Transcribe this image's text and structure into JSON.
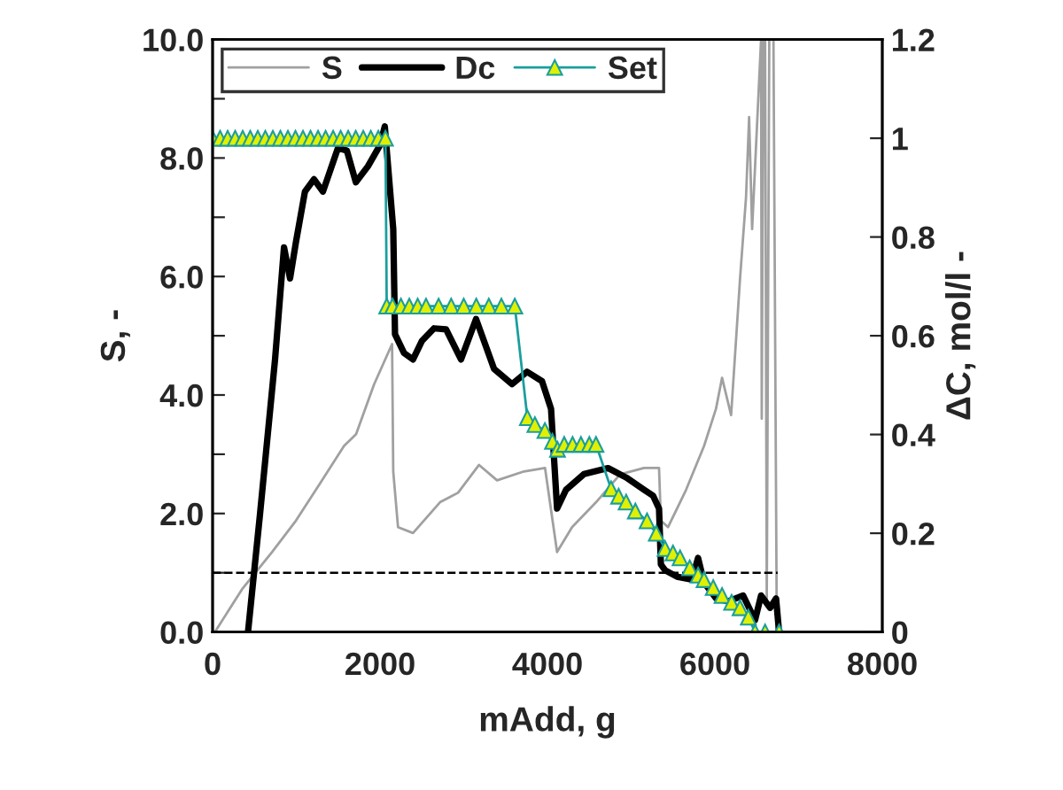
{
  "chart_data": {
    "type": "line",
    "xlabel": "mAdd, g",
    "ylabel": "S, -",
    "y2label": "ΔC, mol/l -",
    "xlim": [
      0,
      8000
    ],
    "xticks": [
      0,
      2000,
      4000,
      6000,
      8000
    ],
    "ylim": [
      0,
      10
    ],
    "yticks": [
      {
        "value": 0,
        "label": "0.0"
      },
      {
        "value": 1,
        "label": null
      },
      {
        "value": 2,
        "label": "2.0"
      },
      {
        "value": 3,
        "label": null
      },
      {
        "value": 4,
        "label": "4.0"
      },
      {
        "value": 5,
        "label": null
      },
      {
        "value": 6,
        "label": "6.0"
      },
      {
        "value": 7,
        "label": null
      },
      {
        "value": 8,
        "label": "8.0"
      },
      {
        "value": 9,
        "label": null
      },
      {
        "value": 10,
        "label": "10.0"
      }
    ],
    "y2lim": [
      0,
      1.2
    ],
    "y2ticks": [
      0,
      0.2,
      0.4,
      0.6,
      0.8,
      1,
      1.2
    ],
    "legend": "top left",
    "grid": false,
    "series": [
      {
        "name": "S",
        "color": "#a0a0a0",
        "marker": "none",
        "line_style": "solid",
        "x": [
          28,
          351,
          710,
          996,
          1284,
          1570,
          1714,
          1929,
          2144,
          2158,
          2215,
          2394,
          2717,
          2932,
          3183,
          3398,
          3720,
          3971,
          4115,
          4294,
          4581,
          4867,
          5154,
          5333,
          5355,
          5441,
          5656,
          5871,
          6014,
          6086,
          6194,
          6301,
          6372,
          6409,
          6445,
          6552,
          6560,
          6580,
          6600,
          6620,
          6650,
          6700,
          6740
        ],
        "values": [
          0,
          0.72,
          1.35,
          1.88,
          2.51,
          3.14,
          3.34,
          4.18,
          4.86,
          2.71,
          1.77,
          1.67,
          2.19,
          2.35,
          2.82,
          2.56,
          2.71,
          2.77,
          1.35,
          1.77,
          2.19,
          2.66,
          2.77,
          2.77,
          1.88,
          1.77,
          2.4,
          3.14,
          3.77,
          4.29,
          3.66,
          5.97,
          7.33,
          8.69,
          6.8,
          10,
          3.6,
          10,
          10,
          0.5,
          10,
          10,
          0
        ]
      },
      {
        "name": "Dc",
        "color": "#000000",
        "axis": "y2",
        "marker": "none",
        "line_style": "solid",
        "x": [
          423,
          566,
          746,
          853,
          925,
          996,
          1103,
          1211,
          1318,
          1497,
          1604,
          1711,
          1855,
          2000,
          2057,
          2158,
          2179,
          2287,
          2394,
          2502,
          2645,
          2789,
          2968,
          3147,
          3362,
          3577,
          3756,
          3935,
          4043,
          4115,
          4222,
          4437,
          4724,
          4939,
          5154,
          5262,
          5333,
          5355,
          5405,
          5548,
          5727,
          5799,
          5871,
          6014,
          6158,
          6337,
          6480,
          6552,
          6660,
          6731,
          6767
        ],
        "values": [
          0,
          0.238,
          0.552,
          0.779,
          0.716,
          0.79,
          0.892,
          0.917,
          0.892,
          0.98,
          0.975,
          0.911,
          0.943,
          0.986,
          1.024,
          0.816,
          0.603,
          0.565,
          0.552,
          0.59,
          0.615,
          0.613,
          0.552,
          0.634,
          0.533,
          0.502,
          0.527,
          0.508,
          0.452,
          0.25,
          0.288,
          0.32,
          0.332,
          0.313,
          0.288,
          0.276,
          0.25,
          0.137,
          0.125,
          0.112,
          0.106,
          0.15,
          0.1,
          0.068,
          0.062,
          0.074,
          0.024,
          0.074,
          0.049,
          0.068,
          0
        ]
      },
      {
        "name": "Set",
        "color": "#1a9e9e",
        "axis": "y2",
        "marker": "triangle",
        "line_style": "solid",
        "x": [
          0,
          90,
          180,
          270,
          360,
          450,
          540,
          630,
          720,
          810,
          900,
          990,
          1080,
          1170,
          1260,
          1350,
          1440,
          1530,
          1620,
          1710,
          1800,
          1890,
          1980,
          2065,
          2080,
          2150,
          2250,
          2350,
          2450,
          2550,
          2700,
          2850,
          3000,
          3150,
          3300,
          3450,
          3610,
          3760,
          3850,
          3970,
          4060,
          4120,
          4200,
          4300,
          4400,
          4500,
          4580,
          4760,
          4850,
          4940,
          5050,
          5190,
          5300,
          5405,
          5500,
          5584,
          5700,
          5800,
          5871,
          5980,
          6086,
          6200,
          6301,
          6400,
          6480,
          6600,
          6767
        ],
        "values": [
          1,
          1,
          1,
          1,
          1,
          1,
          1,
          1,
          1,
          1,
          1,
          1,
          1,
          1,
          1,
          1,
          1,
          1,
          1,
          1,
          1,
          1,
          1,
          1,
          0.66,
          0.66,
          0.66,
          0.66,
          0.66,
          0.66,
          0.66,
          0.66,
          0.66,
          0.66,
          0.66,
          0.66,
          0.66,
          0.434,
          0.42,
          0.408,
          0.386,
          0.37,
          0.38,
          0.38,
          0.38,
          0.38,
          0.38,
          0.29,
          0.275,
          0.263,
          0.245,
          0.225,
          0.2,
          0.169,
          0.16,
          0.15,
          0.13,
          0.115,
          0.106,
          0.09,
          0.074,
          0.06,
          0.049,
          0.03,
          0,
          0,
          0
        ]
      },
      {
        "color": "#000000",
        "marker": "none",
        "line_style": "dashed",
        "x": [
          0,
          6750
        ],
        "values": [
          1,
          1
        ]
      }
    ]
  }
}
